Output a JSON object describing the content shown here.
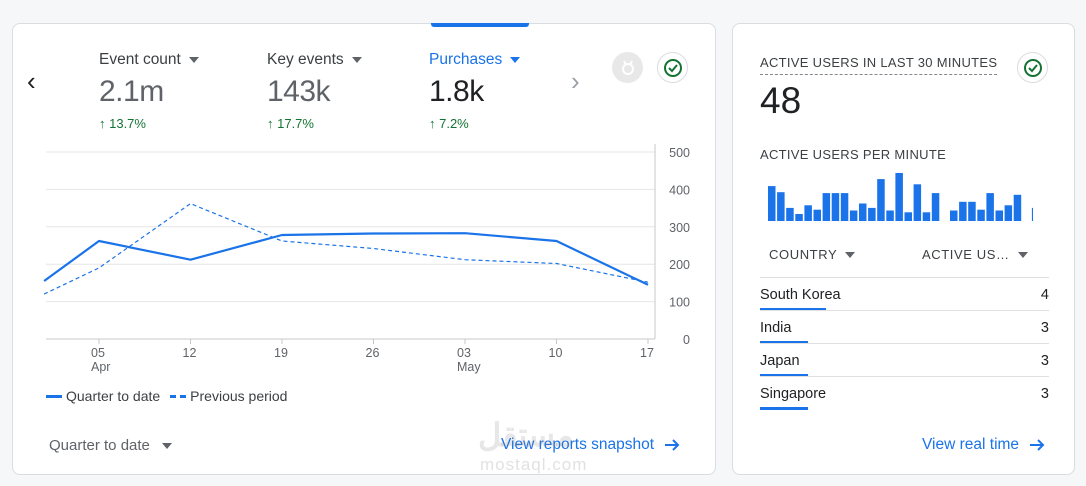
{
  "main": {
    "metrics": [
      {
        "label": "Event count",
        "value": "2.1m",
        "delta": "↑ 13.7%"
      },
      {
        "label": "Key events",
        "value": "143k",
        "delta": "↑ 17.7%"
      },
      {
        "label": "Purchases",
        "value": "1.8k",
        "delta": "↑ 7.2%"
      }
    ],
    "selected_metric": "Purchases",
    "prev_icon": "chevron-left-icon",
    "next_icon": "chevron-right-icon",
    "legend": {
      "current": "Quarter to date",
      "previous": "Previous period"
    },
    "date_range": "Quarter to date",
    "view_link": "View reports snapshot"
  },
  "chart_data": {
    "type": "line",
    "x_ticks": [
      {
        "day": "05",
        "month": "Apr"
      },
      {
        "day": "12",
        "month": ""
      },
      {
        "day": "19",
        "month": ""
      },
      {
        "day": "26",
        "month": ""
      },
      {
        "day": "03",
        "month": "May"
      },
      {
        "day": "10",
        "month": ""
      },
      {
        "day": "17",
        "month": ""
      }
    ],
    "y_ticks": [
      "500",
      "400",
      "300",
      "200",
      "100",
      "0"
    ],
    "ylim": [
      0,
      500
    ],
    "grid": true,
    "legend_position": "bottom-left",
    "series": [
      {
        "name": "Quarter to date",
        "style": "solid",
        "color": "#1a73e8",
        "x": [
          -0.6,
          0,
          1,
          2,
          3,
          4,
          5,
          6
        ],
        "values": [
          155,
          262,
          212,
          278,
          282,
          283,
          262,
          145
        ]
      },
      {
        "name": "Previous period",
        "style": "dashed",
        "color": "#1a73e8",
        "x": [
          -0.6,
          0,
          1,
          2,
          3,
          4,
          5,
          6
        ],
        "values": [
          120,
          190,
          362,
          262,
          242,
          212,
          202,
          152
        ]
      }
    ]
  },
  "realtime": {
    "title": "ACTIVE USERS IN LAST 30 MINUTES",
    "value": "48",
    "per_minute_label": "ACTIVE USERS PER MINUTE",
    "per_minute": [
      4,
      3.3,
      1.5,
      0.8,
      1.8,
      1.3,
      3.2,
      3.2,
      3.2,
      1.2,
      2,
      1.5,
      4.8,
      1.2,
      5.5,
      1,
      4.2,
      1,
      3.2,
      0,
      1.2,
      2.2,
      2.2,
      1.3,
      3.2,
      1.2,
      1.8,
      3,
      0,
      1.5
    ],
    "col_country": "COUNTRY",
    "col_users": "ACTIVE US…",
    "rows": [
      {
        "country": "South Korea",
        "users": "4",
        "share": 0.75
      },
      {
        "country": "India",
        "users": "3",
        "share": 0.55
      },
      {
        "country": "Japan",
        "users": "3",
        "share": 0.55
      },
      {
        "country": "Singapore",
        "users": "3",
        "share": 0.55
      }
    ],
    "view_link": "View real time"
  },
  "watermark": {
    "arabic": "مستقل",
    "latin": "mostaql.com"
  },
  "colors": {
    "accent": "#1a73e8",
    "positive": "#137333",
    "grid": "#e6e6e6"
  }
}
